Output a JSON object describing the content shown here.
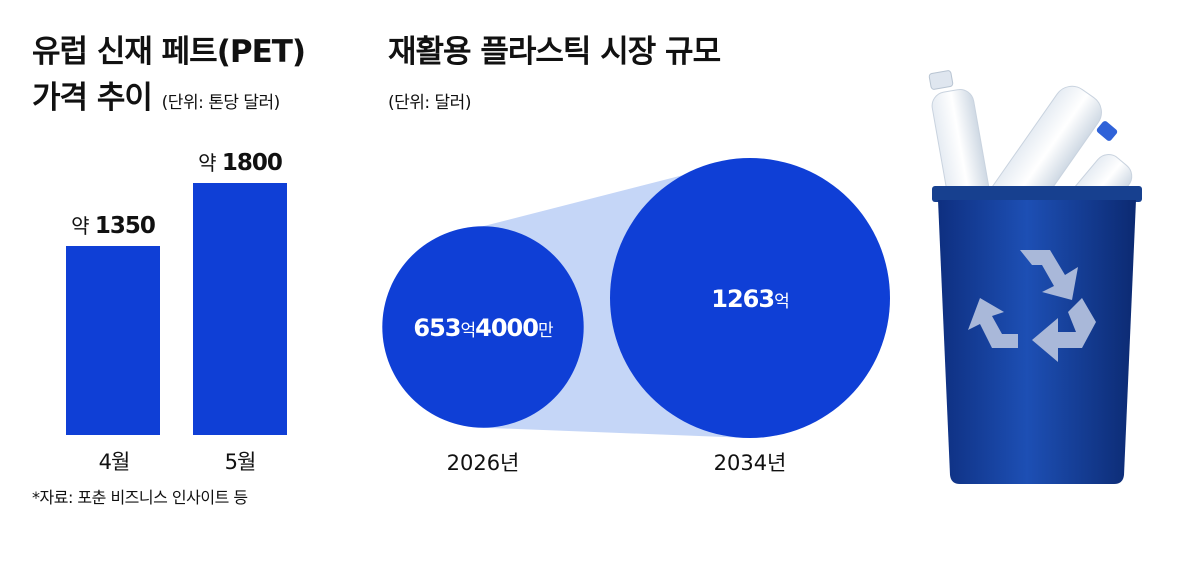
{
  "colors": {
    "bar": "#0f3fd6",
    "circle": "#0f3fd6",
    "funnel": "#c5d6f7",
    "bin": "#143c9c",
    "bin_light": "#2a5cc8",
    "recycle_symbol": "#a9b8d9"
  },
  "source": "*자료: 포춘 비즈니스 인사이트 등",
  "chart_data": [
    {
      "type": "bar",
      "title": "유럽 신재 페트(PET) 가격 추이",
      "title_line1": "유럽 신재 페트(PET)",
      "title_line2": "가격 추이",
      "unit": "(단위: 톤당 달러)",
      "categories": [
        "4월",
        "5월"
      ],
      "values": [
        1350,
        1800
      ],
      "value_prefix": "약",
      "ylim": [
        0,
        1800
      ]
    },
    {
      "type": "bubble",
      "title": "재활용 플라스틱 시장 규모",
      "unit": "(단위: 달러)",
      "categories": [
        "2026년",
        "2034년"
      ],
      "values": [
        65340000000,
        126300000000
      ],
      "value_labels": [
        [
          {
            "text": "653",
            "big": true
          },
          {
            "text": "억",
            "big": false
          },
          {
            "text": "4000",
            "big": true
          },
          {
            "text": "만",
            "big": false
          }
        ],
        [
          {
            "text": "1263",
            "big": true
          },
          {
            "text": "억",
            "big": false
          }
        ]
      ]
    }
  ]
}
